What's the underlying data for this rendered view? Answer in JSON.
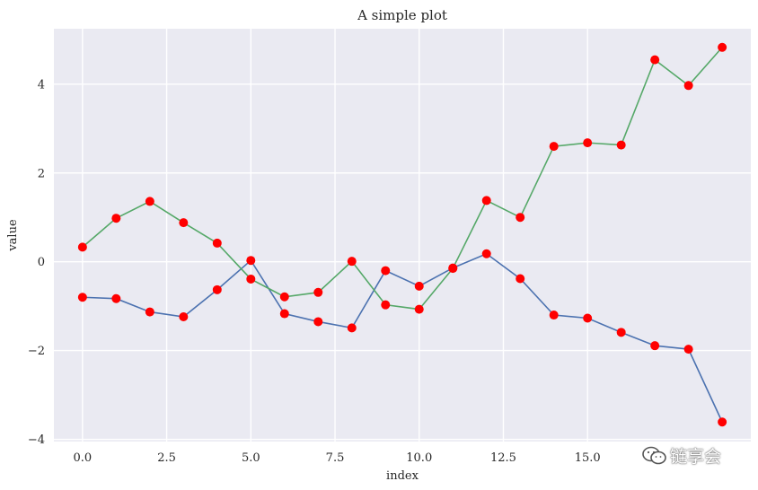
{
  "chart_data": {
    "type": "line",
    "title": "A simple plot",
    "xlabel": "index",
    "ylabel": "value",
    "xlim": [
      -0.85,
      19.85
    ],
    "ylim": [
      -4.05,
      5.25
    ],
    "x_ticks": [
      0.0,
      2.5,
      5.0,
      7.5,
      10.0,
      12.5,
      15.0
    ],
    "x_tick_labels": [
      "0.0",
      "2.5",
      "5.0",
      "7.5",
      "10.0",
      "12.5",
      "15.0"
    ],
    "y_ticks": [
      -4,
      -2,
      0,
      2,
      4
    ],
    "y_tick_labels": [
      "−4",
      "−2",
      "0",
      "2",
      "4"
    ],
    "grid": true,
    "x": [
      0,
      1,
      2,
      3,
      4,
      5,
      6,
      7,
      8,
      9,
      10,
      11,
      12,
      13,
      14,
      15,
      16,
      17,
      18,
      19
    ],
    "series": [
      {
        "color": "#4c72b0",
        "marker_color": "#ff0000",
        "values": [
          -0.8,
          -0.83,
          -1.13,
          -1.24,
          -0.63,
          0.03,
          -1.17,
          -1.35,
          -1.49,
          -0.2,
          -0.55,
          -0.14,
          0.18,
          -0.38,
          -1.2,
          -1.27,
          -1.59,
          -1.89,
          -1.97,
          -3.61
        ]
      },
      {
        "color": "#55a868",
        "marker_color": "#ff0000",
        "values": [
          0.33,
          0.98,
          1.36,
          0.88,
          0.42,
          -0.39,
          -0.79,
          -0.69,
          0.01,
          -0.97,
          -1.07,
          -0.15,
          1.38,
          1.0,
          2.6,
          2.68,
          2.63,
          4.55,
          3.97,
          4.83
        ]
      }
    ],
    "background": "#eaeaf2",
    "grid_color": "#ffffff"
  },
  "watermark": {
    "text": "链享会",
    "icon": "wechat-icon"
  }
}
